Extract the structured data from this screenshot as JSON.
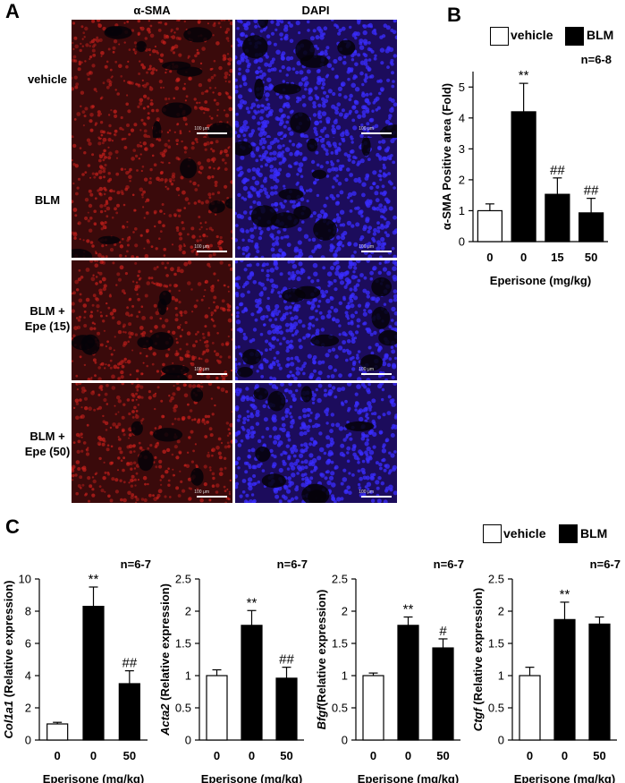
{
  "panel_a": {
    "letter": "A",
    "col_headers": [
      "α-SMA",
      "DAPI"
    ],
    "rows": [
      {
        "label_lines": [
          "vehicle"
        ]
      },
      {
        "label_lines": [
          "BLM"
        ]
      },
      {
        "label_lines": [
          "BLM +",
          "Epe (15)"
        ]
      },
      {
        "label_lines": [
          "BLM +",
          "Epe (50)"
        ]
      }
    ],
    "scale_text": "100 μm",
    "colors": {
      "sma": "#c8201c",
      "dapi": "#3a2cff"
    }
  },
  "panel_b": {
    "letter": "B"
  },
  "panel_c": {
    "letter": "C"
  },
  "legend": {
    "vehicle": "vehicle",
    "blm": "BLM"
  },
  "chart_data": [
    {
      "type": "bar",
      "panel": "B",
      "title": "",
      "ylabel": "α-SMA Positive area (Fold)",
      "xlabel": "Eperisone (mg/kg)",
      "categories": [
        "0",
        "0",
        "15",
        "50"
      ],
      "values": [
        1.0,
        4.2,
        1.53,
        0.93
      ],
      "errors": [
        0.22,
        0.92,
        0.53,
        0.47
      ],
      "fills": [
        "white",
        "black",
        "black",
        "black"
      ],
      "annotations": [
        "",
        "**",
        "##",
        "##"
      ],
      "n_label": "n=6-8",
      "ylim": [
        0,
        5.5
      ],
      "yticks": [
        0,
        1,
        2,
        3,
        4,
        5
      ],
      "ytick_labels": [
        "0",
        "1",
        "2",
        "3",
        "4",
        "5"
      ]
    },
    {
      "type": "bar",
      "panel": "C",
      "gene": "Col1a1",
      "ylabel_rest": " (Relative expression)",
      "xlabel": "Eperisone (mg/kg)",
      "categories": [
        "0",
        "0",
        "50"
      ],
      "values": [
        1.0,
        8.3,
        3.5
      ],
      "errors": [
        0.1,
        1.2,
        0.8
      ],
      "fills": [
        "white",
        "black",
        "black"
      ],
      "annotations": [
        "",
        "**",
        "##"
      ],
      "n_label": "n=6-7",
      "ylim": [
        0,
        10
      ],
      "yticks": [
        0,
        2,
        4,
        6,
        8,
        10
      ],
      "ytick_labels": [
        "0",
        "2",
        "4",
        "6",
        "8",
        "10"
      ]
    },
    {
      "type": "bar",
      "panel": "C",
      "gene": "Acta2",
      "ylabel_rest": " (Relative expression)",
      "xlabel": "Eperisone (mg/kg)",
      "categories": [
        "0",
        "0",
        "50"
      ],
      "values": [
        1.0,
        1.78,
        0.96
      ],
      "errors": [
        0.09,
        0.23,
        0.17
      ],
      "fills": [
        "white",
        "black",
        "black"
      ],
      "annotations": [
        "",
        "**",
        "##"
      ],
      "n_label": "n=6-7",
      "ylim": [
        0,
        2.5
      ],
      "yticks": [
        0,
        0.5,
        1,
        1.5,
        2,
        2.5
      ],
      "ytick_labels": [
        "0",
        "0.5",
        "1",
        "1.5",
        "2",
        "2.5"
      ]
    },
    {
      "type": "bar",
      "panel": "C",
      "gene": "Bfgf",
      "ylabel_rest": "(Relative expression)",
      "xlabel": "Eperisone (mg/kg)",
      "categories": [
        "0",
        "0",
        "50"
      ],
      "values": [
        1.0,
        1.78,
        1.43
      ],
      "errors": [
        0.04,
        0.13,
        0.14
      ],
      "fills": [
        "white",
        "black",
        "black"
      ],
      "annotations": [
        "",
        "**",
        "#"
      ],
      "n_label": "n=6-7",
      "ylim": [
        0,
        2.5
      ],
      "yticks": [
        0,
        0.5,
        1,
        1.5,
        2,
        2.5
      ],
      "ytick_labels": [
        "0",
        "0.5",
        "1",
        "1.5",
        "2",
        "2.5"
      ]
    },
    {
      "type": "bar",
      "panel": "C",
      "gene": "Ctgf",
      "ylabel_rest": " (Relative expression)",
      "xlabel": "Eperisone (mg/kg)",
      "categories": [
        "0",
        "0",
        "50"
      ],
      "values": [
        1.0,
        1.87,
        1.8
      ],
      "errors": [
        0.13,
        0.27,
        0.11
      ],
      "fills": [
        "white",
        "black",
        "black"
      ],
      "annotations": [
        "",
        "**",
        ""
      ],
      "n_label": "n=6-7",
      "ylim": [
        0,
        2.5
      ],
      "yticks": [
        0,
        0.5,
        1,
        1.5,
        2,
        2.5
      ],
      "ytick_labels": [
        "0",
        "0.5",
        "1",
        "1.5",
        "2",
        "2.5"
      ]
    }
  ]
}
